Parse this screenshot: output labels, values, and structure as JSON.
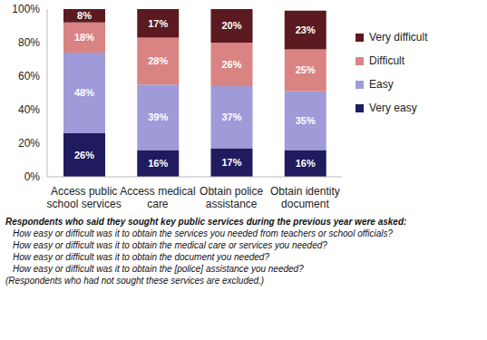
{
  "chart_data": {
    "type": "bar",
    "stacked": true,
    "data_labels": true,
    "grid": false,
    "legend": "right",
    "categories": [
      "Access public school services",
      "Access medical care",
      "Obtain police assistance",
      "Obtain identity document"
    ],
    "ylim": [
      0,
      100
    ],
    "yticks": [
      {
        "value": 0,
        "label": "0%"
      },
      {
        "value": 20,
        "label": "20%"
      },
      {
        "value": 40,
        "label": "40%"
      },
      {
        "value": 60,
        "label": "60%"
      },
      {
        "value": 80,
        "label": "80%"
      },
      {
        "value": 100,
        "label": "100%"
      }
    ],
    "series": [
      {
        "name": "Very easy",
        "color": "#1f1b5e",
        "values": [
          26,
          16,
          17,
          16
        ],
        "value_labels": [
          "26%",
          "16%",
          "17%",
          "16%"
        ]
      },
      {
        "name": "Easy",
        "color": "#9e9bd8",
        "values": [
          48,
          39,
          37,
          35
        ],
        "value_labels": [
          "48%",
          "39%",
          "37%",
          "35%"
        ]
      },
      {
        "name": "Difficult",
        "color": "#d98383",
        "values": [
          18,
          28,
          26,
          25
        ],
        "value_labels": [
          "18%",
          "28%",
          "26%",
          "25%"
        ]
      },
      {
        "name": "Very difficult",
        "color": "#5a1a1f",
        "values": [
          8,
          17,
          20,
          23
        ],
        "value_labels": [
          "8%",
          "17%",
          "20%",
          "23%"
        ]
      }
    ],
    "annotations": [
      "Respondents who said they sought key public services during the previous year were asked:",
      "How easy or difficult was it to obtain the services you needed from teachers or school officials?",
      "How easy or difficult was it to obtain the medical care or services you needed?",
      "How easy or difficult was it to obtain the document you needed?",
      "How easy or difficult was it to obtain the [police] assistance you needed?",
      "(Respondents who had not sought these services are excluded.)"
    ]
  }
}
